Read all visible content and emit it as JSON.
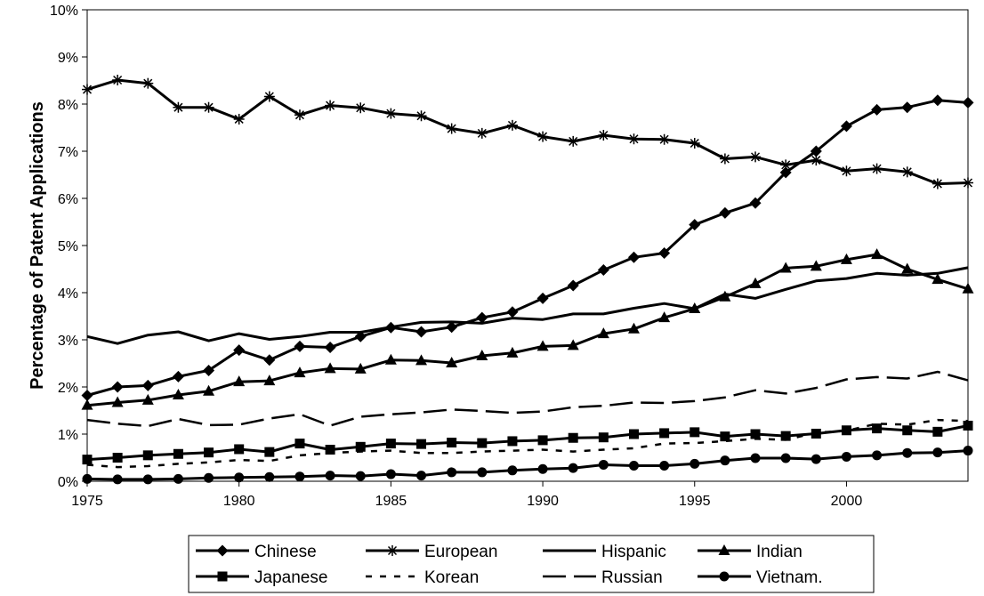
{
  "chart_data": {
    "type": "line",
    "ylabel": "Percentage of Patent Applications",
    "xlabel": "",
    "title": "",
    "xlim": [
      1975,
      2004
    ],
    "ylim": [
      0,
      10
    ],
    "x_ticks": [
      "1975",
      "1980",
      "1985",
      "1990",
      "1995",
      "2000"
    ],
    "y_ticks": [
      "0%",
      "1%",
      "2%",
      "3%",
      "4%",
      "5%",
      "6%",
      "7%",
      "8%",
      "9%",
      "10%"
    ],
    "grid": false,
    "legend_position": "bottom",
    "x": [
      1975,
      1976,
      1977,
      1978,
      1979,
      1980,
      1981,
      1982,
      1983,
      1984,
      1985,
      1986,
      1987,
      1988,
      1989,
      1990,
      1991,
      1992,
      1993,
      1994,
      1995,
      1996,
      1997,
      1998,
      1999,
      2000,
      2001,
      2002,
      2003,
      2004
    ],
    "series": [
      {
        "name": "Chinese",
        "marker": "diamond",
        "dash": "solid",
        "values": [
          1.82,
          2.0,
          2.03,
          2.22,
          2.35,
          2.78,
          2.57,
          2.86,
          2.84,
          3.07,
          3.26,
          3.17,
          3.27,
          3.47,
          3.59,
          3.88,
          4.15,
          4.48,
          4.75,
          4.84,
          5.44,
          5.69,
          5.9,
          6.55,
          7.0,
          7.53,
          7.88,
          7.93,
          8.08,
          8.03
        ]
      },
      {
        "name": "European",
        "marker": "asterisk",
        "dash": "solid",
        "values": [
          8.31,
          8.51,
          8.44,
          7.93,
          7.93,
          7.68,
          8.16,
          7.77,
          7.97,
          7.92,
          7.8,
          7.75,
          7.48,
          7.38,
          7.55,
          7.31,
          7.21,
          7.34,
          7.26,
          7.25,
          7.17,
          6.84,
          6.88,
          6.71,
          6.81,
          6.58,
          6.63,
          6.56,
          6.31,
          6.33
        ]
      },
      {
        "name": "Hispanic",
        "marker": "none",
        "dash": "solid",
        "values": [
          3.07,
          2.92,
          3.1,
          3.17,
          2.98,
          3.13,
          3.01,
          3.07,
          3.16,
          3.16,
          3.27,
          3.37,
          3.38,
          3.35,
          3.46,
          3.43,
          3.55,
          3.55,
          3.67,
          3.77,
          3.66,
          3.97,
          3.88,
          4.07,
          4.25,
          4.3,
          4.41,
          4.37,
          4.41,
          4.53
        ]
      },
      {
        "name": "Indian",
        "marker": "triangle",
        "dash": "solid",
        "values": [
          1.61,
          1.67,
          1.72,
          1.83,
          1.91,
          2.11,
          2.13,
          2.3,
          2.39,
          2.38,
          2.57,
          2.56,
          2.51,
          2.66,
          2.72,
          2.86,
          2.88,
          3.13,
          3.23,
          3.47,
          3.66,
          3.91,
          4.19,
          4.52,
          4.56,
          4.7,
          4.81,
          4.5,
          4.28,
          4.08
        ]
      },
      {
        "name": "Japanese",
        "marker": "square",
        "dash": "solid",
        "values": [
          0.46,
          0.5,
          0.55,
          0.58,
          0.61,
          0.68,
          0.62,
          0.8,
          0.67,
          0.73,
          0.8,
          0.79,
          0.82,
          0.81,
          0.85,
          0.87,
          0.92,
          0.93,
          1.0,
          1.02,
          1.04,
          0.95,
          1.0,
          0.96,
          1.01,
          1.08,
          1.12,
          1.08,
          1.05,
          1.18
        ]
      },
      {
        "name": "Korean",
        "marker": "none",
        "dash": "dotted",
        "values": [
          0.35,
          0.3,
          0.32,
          0.37,
          0.4,
          0.45,
          0.43,
          0.55,
          0.6,
          0.63,
          0.65,
          0.6,
          0.6,
          0.63,
          0.65,
          0.67,
          0.63,
          0.67,
          0.7,
          0.8,
          0.81,
          0.85,
          0.9,
          0.88,
          1.03,
          1.07,
          1.22,
          1.2,
          1.3,
          1.28
        ]
      },
      {
        "name": "Russian",
        "marker": "none",
        "dash": "dashed",
        "values": [
          1.3,
          1.22,
          1.17,
          1.32,
          1.19,
          1.2,
          1.33,
          1.42,
          1.18,
          1.37,
          1.42,
          1.46,
          1.52,
          1.49,
          1.45,
          1.48,
          1.57,
          1.6,
          1.67,
          1.66,
          1.7,
          1.78,
          1.93,
          1.86,
          1.98,
          2.16,
          2.21,
          2.18,
          2.32,
          2.14
        ]
      },
      {
        "name": "Vietnam.",
        "marker": "circle",
        "dash": "solid",
        "values": [
          0.05,
          0.04,
          0.04,
          0.05,
          0.07,
          0.08,
          0.09,
          0.1,
          0.12,
          0.11,
          0.15,
          0.12,
          0.19,
          0.19,
          0.23,
          0.26,
          0.28,
          0.35,
          0.33,
          0.33,
          0.37,
          0.44,
          0.49,
          0.49,
          0.47,
          0.52,
          0.55,
          0.6,
          0.61,
          0.65
        ]
      }
    ]
  }
}
